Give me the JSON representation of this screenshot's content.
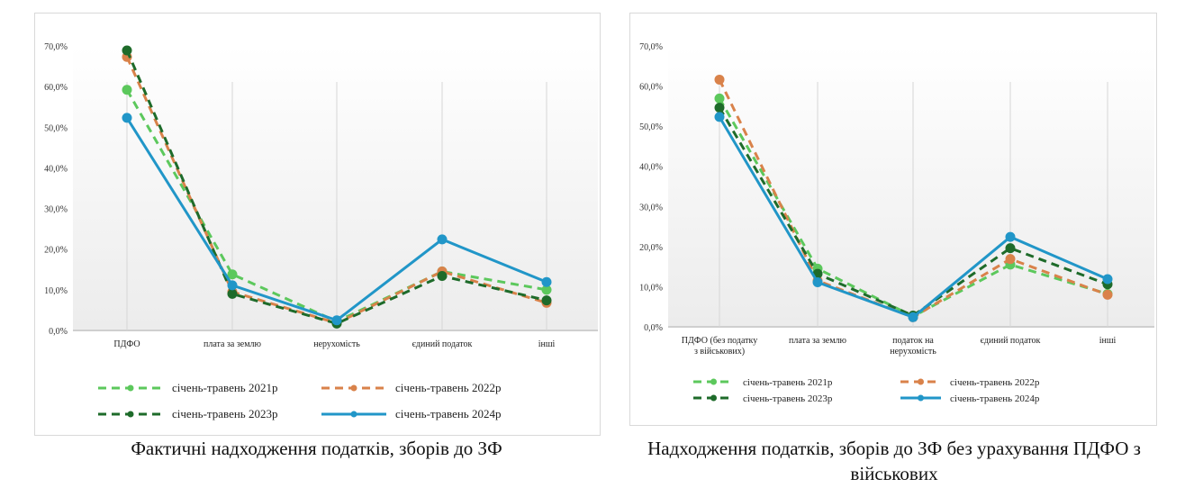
{
  "chart_data": [
    {
      "type": "line",
      "title": "Фактичні надходження податків, зборів до ЗФ",
      "categories": [
        "ПДФО",
        "плата за землю",
        "нерухомість",
        "єдиний податок",
        "інші"
      ],
      "ylim": [
        0,
        70
      ],
      "yticks": [
        "0,0%",
        "10,0%",
        "20,0%",
        "30,0%",
        "40,0%",
        "50,0%",
        "60,0%",
        "70,0%"
      ],
      "legend_position": "bottom",
      "series": [
        {
          "name": "січень-травень 2021р",
          "color": "#5cc85c",
          "dashed": true,
          "values": [
            59.2,
            13.8,
            2.2,
            14.5,
            10.0
          ]
        },
        {
          "name": "січень-травень 2022р",
          "color": "#d9824a",
          "dashed": true,
          "values": [
            67.3,
            9.5,
            1.8,
            14.5,
            6.8
          ]
        },
        {
          "name": "січень-травень 2023р",
          "color": "#1e6b2a",
          "dashed": true,
          "values": [
            68.9,
            9.0,
            1.7,
            13.4,
            7.4
          ]
        },
        {
          "name": "січень-травень 2024р",
          "color": "#2196c8",
          "dashed": false,
          "values": [
            52.3,
            11.1,
            2.5,
            22.4,
            11.9
          ]
        }
      ]
    },
    {
      "type": "line",
      "title": "Надходження податків, зборів до ЗФ без урахування ПДФО з військових",
      "categories": [
        "ПДФО (без податку|з військових)",
        "плата за землю",
        "податок на|нерухомість",
        "єдиний податок",
        "інші"
      ],
      "ylim": [
        0,
        70
      ],
      "yticks": [
        "0,0%",
        "10,0%",
        "20,0%",
        "30,0%",
        "40,0%",
        "50,0%",
        "60,0%",
        "70,0%"
      ],
      "legend_position": "bottom",
      "series": [
        {
          "name": "січень-травень 2021р",
          "color": "#5cc85c",
          "dashed": true,
          "values": [
            56.9,
            14.5,
            2.6,
            15.5,
            8.2
          ]
        },
        {
          "name": "січень-травень 2022р",
          "color": "#d9824a",
          "dashed": true,
          "values": [
            61.6,
            11.5,
            2.4,
            16.9,
            8.0
          ]
        },
        {
          "name": "січень-травень 2023р",
          "color": "#1e6b2a",
          "dashed": true,
          "values": [
            54.6,
            13.2,
            2.8,
            19.6,
            10.6
          ]
        },
        {
          "name": "січень-травень 2024р",
          "color": "#2196c8",
          "dashed": false,
          "values": [
            52.3,
            11.1,
            2.4,
            22.4,
            11.9
          ]
        }
      ]
    }
  ]
}
